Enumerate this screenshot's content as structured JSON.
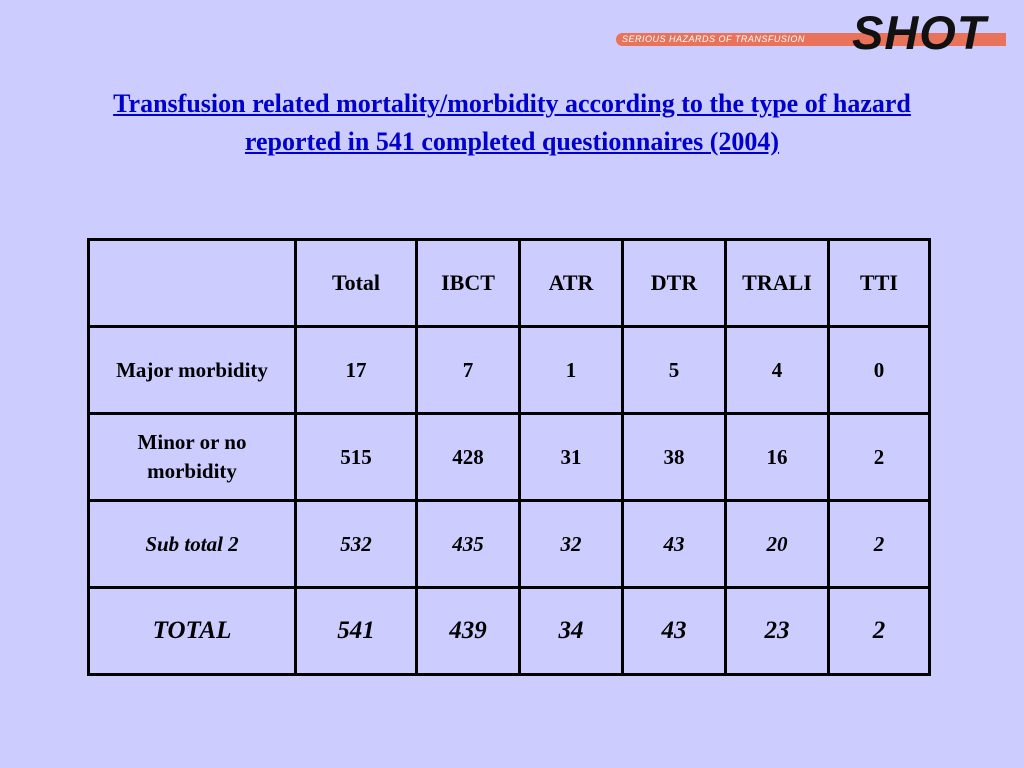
{
  "logo": {
    "tagline": "SERIOUS HAZARDS OF TRANSFUSION",
    "word": "SHOT",
    "bar_color": "#e8735a"
  },
  "title": {
    "line1": "Transfusion related mortality/morbidity according to the type of hazard",
    "line2": "reported in 541 completed questionnaires (2004)",
    "color": "#0000cc"
  },
  "table": {
    "corner": "",
    "headers": [
      "Total",
      "IBCT",
      "ATR",
      "DTR",
      "TRALI",
      "TTI"
    ],
    "rows": [
      {
        "label": "Major morbidity",
        "values": [
          "17",
          "7",
          "1",
          "5",
          "4",
          "0"
        ]
      },
      {
        "label": "Minor or no morbidity",
        "values": [
          "515",
          "428",
          "31",
          "38",
          "16",
          "2"
        ]
      },
      {
        "label": "Sub total 2",
        "values": [
          "532",
          "435",
          "32",
          "43",
          "20",
          "2"
        ]
      },
      {
        "label": "TOTAL",
        "values": [
          "541",
          "439",
          "34",
          "43",
          "23",
          "2"
        ]
      }
    ]
  }
}
